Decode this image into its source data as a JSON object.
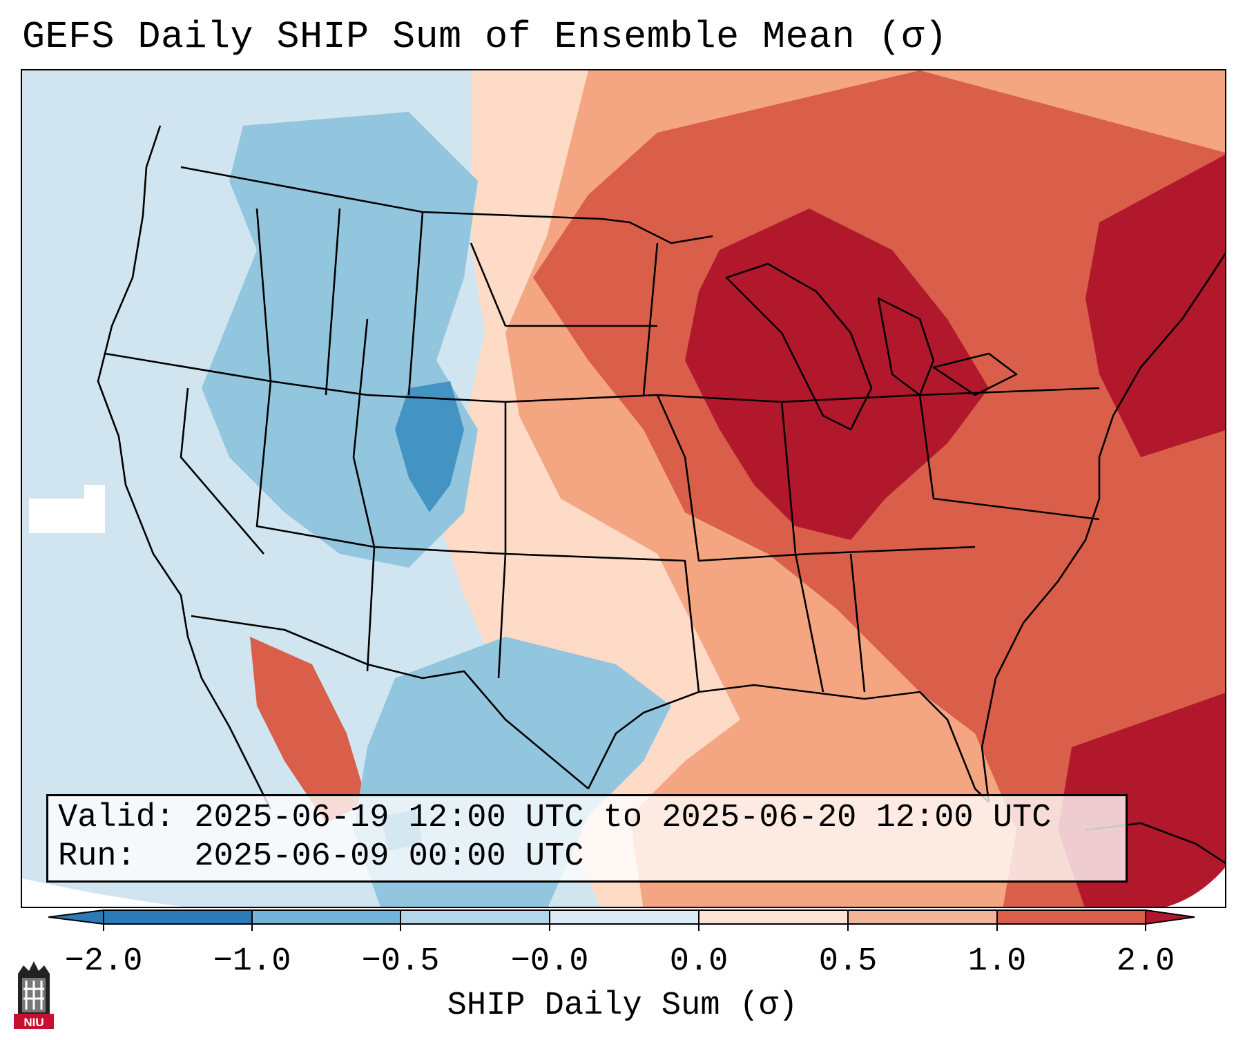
{
  "title": "GEFS Daily SHIP Sum of Ensemble Mean (σ)",
  "valid_line": "Valid: 2025-06-19 12:00 UTC to 2025-06-20 12:00 UTC",
  "run_line": "Run:   2025-06-09 00:00 UTC",
  "colorbar": {
    "label": "SHIP Daily Sum (σ)",
    "ticks": [
      "−2.0",
      "−1.0",
      "−0.5",
      "−0.0",
      "0.0",
      "0.5",
      "1.0",
      "2.0"
    ],
    "bins": [
      "#2c7bb6",
      "#74b3d8",
      "#b3d6ea",
      "#dbeaf3",
      "#fbe3d6",
      "#f4b497",
      "#d95f4a",
      "#b2182b"
    ]
  },
  "logo_text": "NIU",
  "field_levels": {
    "pos_very_high": "#b2182b",
    "pos_high": "#d95f4a",
    "pos_mid": "#f4a582",
    "pos_low": "#fddbc7",
    "neg_low": "#d1e5f0",
    "neg_mid": "#92c5de",
    "neg_high": "#4393c3"
  }
}
